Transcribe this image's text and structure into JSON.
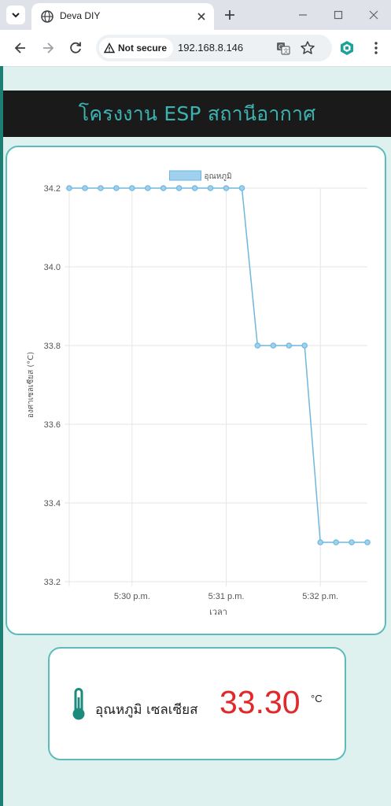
{
  "browser": {
    "tab_title": "Deva DIY",
    "security_label": "Not secure",
    "url": "192.168.8.146",
    "icons": {
      "tab_list": "chevron-down-icon",
      "favicon": "globe-icon",
      "tab_close": "close-icon",
      "new_tab": "plus-icon",
      "minimize": "minimize-icon",
      "maximize": "maximize-icon",
      "window_close": "close-icon",
      "back": "arrow-left-icon",
      "forward": "arrow-right-icon",
      "reload": "reload-icon",
      "warning": "warning-icon",
      "translate": "translate-icon",
      "bookmark": "star-icon",
      "extension": "hexagon-icon",
      "menu": "kebab-menu-icon"
    }
  },
  "page": {
    "title": "โครงงาน ESP สถานีอากาศ",
    "colors": {
      "background": "#dff1ee",
      "header_bg": "#1a1a1a",
      "title": "#3bb4b1",
      "card_border": "#5cbcbc",
      "value": "#e0292b"
    }
  },
  "reading": {
    "label": "อุณหภูมิ เซลเซียส",
    "value": "33.30",
    "unit": "°C",
    "icon": "thermometer-icon"
  },
  "chart_data": {
    "type": "line",
    "legend": "อุณหภูมิ",
    "legend_position": "top-center",
    "ylabel": "องศาเซลเซียส (°C)",
    "xlabel": "เวลา",
    "grid": true,
    "ylim": [
      33.2,
      34.2
    ],
    "yticks": [
      "34.2",
      "34.0",
      "33.8",
      "33.6",
      "33.4",
      "33.2"
    ],
    "ytick_values": [
      34.2,
      34.0,
      33.8,
      33.6,
      33.4,
      33.2
    ],
    "xticks": [
      "5:30 p.m.",
      "5:31 p.m.",
      "5:32 p.m."
    ],
    "xtick_values": [
      30,
      31,
      32
    ],
    "xlim": [
      29.333,
      32.5
    ],
    "line_color": "#6fb7de",
    "point_fill": "#9fd0ee",
    "series": [
      {
        "name": "อุณหภูมิ",
        "x": [
          29.333,
          29.5,
          29.667,
          29.833,
          30.0,
          30.167,
          30.333,
          30.5,
          30.667,
          30.833,
          31.0,
          31.167,
          31.333,
          31.5,
          31.667,
          31.833,
          32.0,
          32.167,
          32.333,
          32.5
        ],
        "y": [
          34.2,
          34.2,
          34.2,
          34.2,
          34.2,
          34.2,
          34.2,
          34.2,
          34.2,
          34.2,
          34.2,
          34.2,
          33.8,
          33.8,
          33.8,
          33.8,
          33.3,
          33.3,
          33.3,
          33.3
        ]
      }
    ]
  }
}
